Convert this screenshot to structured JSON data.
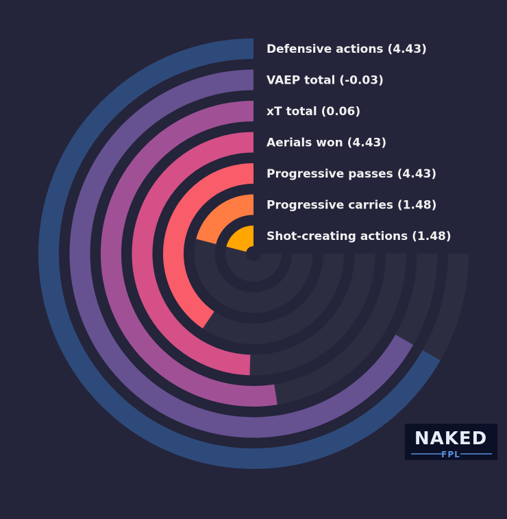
{
  "chart_data": {
    "type": "radial-bar",
    "title": "",
    "max_angle_deg": 270,
    "series": [
      {
        "label": "Defensive actions (4.43)",
        "value": 4.43,
        "fraction": 0.89,
        "color": "#2e4a7a"
      },
      {
        "label": "VAEP total (-0.03)",
        "value": -0.03,
        "fraction": 0.89,
        "color": "#665191"
      },
      {
        "label": "xT total (0.06)",
        "value": 0.06,
        "fraction": 0.7,
        "color": "#a05195"
      },
      {
        "label": "Aerials won (4.43)",
        "value": 4.43,
        "fraction": 0.66,
        "color": "#d45087"
      },
      {
        "label": "Progressive passes (4.43)",
        "value": 4.43,
        "fraction": 0.54,
        "color": "#f95d6a"
      },
      {
        "label": "Progressive carries (1.48)",
        "value": 1.48,
        "fraction": 0.28,
        "color": "#ff7c43"
      },
      {
        "label": "Shot-creating actions (1.48)",
        "value": 1.48,
        "fraction": 0.28,
        "color": "#ffa600"
      }
    ],
    "track_color": "#2d2d42",
    "background": "#24243a"
  },
  "logo": {
    "word": "NAKED",
    "sub": "FPL",
    "bg": "#0b1026",
    "accent": "#5b8fe0"
  }
}
